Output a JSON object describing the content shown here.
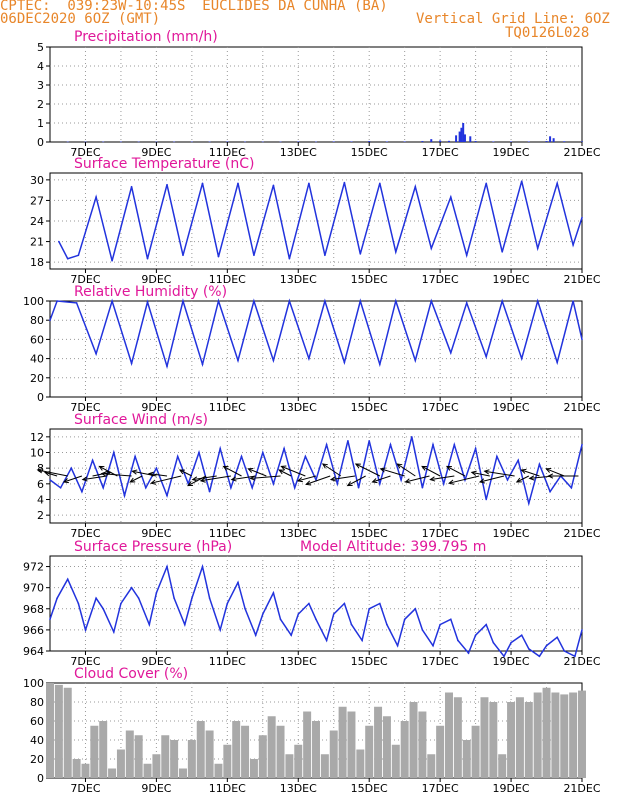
{
  "header": {
    "line1_left": "CPTEC:  039:23W-10:45S  EUCLIDES DA CUNHA (BA)",
    "line2_left": "06DEC2020 6OZ (GMT)",
    "line2_right": "Vertical Grid Line: 6OZ",
    "line3_right": "TQ0126L028"
  },
  "colors": {
    "series": "#2233dd",
    "bars_cloud": "#a9a9a9",
    "title": "#e0189a",
    "header": "#e8862a",
    "wind_arrow": "#000000"
  },
  "x_axis": {
    "start_day": 6,
    "end_day": 21,
    "tick_labels": [
      "7DEC",
      "9DEC",
      "11DEC",
      "13DEC",
      "15DEC",
      "17DEC",
      "19DEC",
      "21DEC"
    ],
    "tick_days": [
      7,
      9,
      11,
      13,
      15,
      17,
      19,
      21
    ],
    "vertical_gridlines": "every day at 06Z"
  },
  "chart_data": [
    {
      "id": "precip",
      "type": "bar",
      "title": "Precipitation (mm/h)",
      "ylim": [
        0,
        5
      ],
      "yticks": [
        0,
        1,
        2,
        3,
        4,
        5
      ],
      "grid": true,
      "series": [
        {
          "name": "",
          "x": [
            6.5,
            7.0,
            7.5,
            8.0,
            8.5,
            9.0,
            9.5,
            10.0,
            10.5,
            11.0,
            11.5,
            12.0,
            12.5,
            13.0,
            13.5,
            14.0,
            14.5,
            15.0,
            15.5,
            16.0,
            16.5,
            16.75,
            17.0,
            17.25,
            17.45,
            17.55,
            17.6,
            17.65,
            17.7,
            17.85,
            18.0,
            18.5,
            19.0,
            19.5,
            20.0,
            20.1,
            20.2,
            20.5,
            21.0
          ],
          "values": [
            0.02,
            0.02,
            0.02,
            0.02,
            0.02,
            0.02,
            0.02,
            0.02,
            0.02,
            0.03,
            0.02,
            0.02,
            0.02,
            0.03,
            0.02,
            0.03,
            0.03,
            0.05,
            0.03,
            0.03,
            0.05,
            0.15,
            0.08,
            0.06,
            0.35,
            0.55,
            0.75,
            1.0,
            0.4,
            0.3,
            0.05,
            0.03,
            0.03,
            0.03,
            0.05,
            0.3,
            0.2,
            0.04,
            0.03
          ]
        }
      ]
    },
    {
      "id": "temp",
      "type": "line",
      "title": "Surface Temperature (nC)",
      "ylim": [
        17,
        31
      ],
      "yticks": [
        18,
        21,
        24,
        27,
        30
      ],
      "grid": true,
      "series": [
        {
          "name": "",
          "x": [
            6.25,
            6.5,
            6.8,
            7.3,
            7.75,
            8.3,
            8.75,
            9.3,
            9.75,
            10.3,
            10.75,
            11.3,
            11.75,
            12.3,
            12.75,
            13.3,
            13.75,
            14.3,
            14.75,
            15.3,
            15.75,
            16.3,
            16.75,
            17.3,
            17.75,
            18.3,
            18.75,
            19.3,
            19.75,
            20.3,
            20.75,
            21.0
          ],
          "values": [
            21,
            18.5,
            19,
            27.5,
            18.2,
            29,
            18.5,
            29.3,
            19,
            29.5,
            18.8,
            29.5,
            19,
            29.2,
            18.5,
            29.5,
            19,
            29.6,
            19.2,
            29.5,
            19.5,
            29,
            20,
            27.5,
            19,
            29.5,
            19.5,
            29.8,
            20,
            29.5,
            20.5,
            24.5
          ]
        }
      ]
    },
    {
      "id": "rh",
      "type": "line",
      "title": "Relative Humidity (%)",
      "ylim": [
        0,
        100
      ],
      "yticks": [
        0,
        20,
        40,
        60,
        80,
        100
      ],
      "grid": true,
      "series": [
        {
          "name": "",
          "x": [
            6.0,
            6.2,
            6.75,
            7.3,
            7.75,
            8.3,
            8.75,
            9.3,
            9.75,
            10.3,
            10.75,
            11.3,
            11.75,
            12.3,
            12.75,
            13.3,
            13.75,
            14.3,
            14.75,
            15.3,
            15.75,
            16.3,
            16.75,
            17.3,
            17.75,
            18.3,
            18.75,
            19.3,
            19.75,
            20.3,
            20.75,
            21.0
          ],
          "values": [
            80,
            100,
            98,
            45,
            100,
            35,
            99,
            32,
            100,
            34,
            100,
            38,
            100,
            38,
            100,
            40,
            100,
            36,
            100,
            34,
            100,
            38,
            100,
            46,
            98,
            42,
            100,
            40,
            100,
            36,
            100,
            60
          ]
        }
      ]
    },
    {
      "id": "wind",
      "type": "line",
      "title": "Surface Wind (m/s)",
      "ylim": [
        1,
        13
      ],
      "yticks": [
        2,
        4,
        6,
        8,
        10,
        12
      ],
      "grid": true,
      "series": [
        {
          "name": "",
          "x": [
            6.0,
            6.3,
            6.6,
            6.9,
            7.2,
            7.5,
            7.8,
            8.1,
            8.4,
            8.7,
            9.0,
            9.3,
            9.6,
            9.9,
            10.2,
            10.5,
            10.8,
            11.1,
            11.4,
            11.7,
            12.0,
            12.3,
            12.6,
            12.9,
            13.2,
            13.5,
            13.8,
            14.1,
            14.4,
            14.7,
            15.0,
            15.3,
            15.6,
            15.9,
            16.2,
            16.5,
            16.8,
            17.1,
            17.4,
            17.7,
            18.0,
            18.3,
            18.6,
            18.9,
            19.2,
            19.5,
            19.8,
            20.1,
            20.4,
            20.7,
            21.0
          ],
          "values": [
            6.5,
            5.5,
            8,
            5,
            9,
            5.5,
            10,
            4.5,
            9.5,
            5.5,
            8,
            4.5,
            9.5,
            6,
            10,
            5,
            10.5,
            5.5,
            9.5,
            5.5,
            10,
            6,
            10.5,
            5.5,
            9.5,
            6.5,
            11,
            6,
            11.5,
            5.5,
            11.5,
            6,
            11,
            6.5,
            12,
            5.5,
            11,
            6,
            11,
            6.5,
            10.5,
            4,
            9.5,
            6.5,
            9,
            3.5,
            8.5,
            5,
            7,
            5.5,
            11
          ]
        }
      ],
      "wind_vectors": {
        "x": [
          6.2,
          6.5,
          6.9,
          7.2,
          7.6,
          7.9,
          8.3,
          8.6,
          9.0,
          9.3,
          9.7,
          10.0,
          10.4,
          10.7,
          11.1,
          11.4,
          11.8,
          12.1,
          12.5,
          12.8,
          13.2,
          13.5,
          13.9,
          14.2,
          14.6,
          14.9,
          15.3,
          15.6,
          16.0,
          16.3,
          16.7,
          17.0,
          17.4,
          17.7,
          18.1,
          18.4,
          18.8,
          19.1,
          19.5,
          19.8,
          20.2,
          20.5,
          20.9
        ],
        "u": [
          -1,
          -2.5,
          -1.5,
          1.5,
          -2,
          -1.5,
          -2.5,
          -1,
          -2,
          -1.5,
          -2.5,
          -1,
          -1.5,
          -2,
          -2.5,
          -1.5,
          -2,
          -1.5,
          -2.5,
          -1,
          -2,
          -1.5,
          -2,
          -1.5,
          -2,
          -1.5,
          -2,
          -1.5,
          -2,
          -1.5,
          -2,
          -1.5,
          -2,
          -1.5,
          -2.5,
          -1.5,
          -2,
          -2.5,
          -1,
          -1.5,
          -2,
          -1.5,
          -2.5
        ],
        "v": [
          0.3,
          0.5,
          -0.5,
          0.3,
          -0.3,
          0.8,
          0.2,
          -0.5,
          0.4,
          0.2,
          -0.6,
          0.5,
          -0.8,
          -0.3,
          -0.4,
          0.8,
          -0.3,
          0.6,
          -0.2,
          0.5,
          0.8,
          -0.4,
          -0.7,
          1,
          -0.3,
          -0.8,
          1,
          -0.5,
          0.6,
          1,
          -0.5,
          0.8,
          -0.3,
          0.8,
          -0.6,
          0.3,
          -0.5,
          0.4,
          -0.5,
          0.5,
          -0.2,
          0.6,
          0
        ]
      }
    },
    {
      "id": "pressure",
      "type": "line",
      "title": "Surface Pressure (hPa)",
      "subtitle": "Model Altitude: 399.795 m",
      "ylim": [
        964,
        973
      ],
      "yticks": [
        964,
        966,
        968,
        970,
        972
      ],
      "grid": true,
      "series": [
        {
          "name": "",
          "x": [
            6.0,
            6.2,
            6.5,
            6.8,
            7.0,
            7.3,
            7.5,
            7.8,
            8.0,
            8.3,
            8.5,
            8.8,
            9.0,
            9.3,
            9.5,
            9.8,
            10.0,
            10.3,
            10.5,
            10.8,
            11.0,
            11.3,
            11.5,
            11.8,
            12.0,
            12.3,
            12.5,
            12.8,
            13.0,
            13.3,
            13.5,
            13.8,
            14.0,
            14.3,
            14.5,
            14.8,
            15.0,
            15.3,
            15.5,
            15.8,
            16.0,
            16.3,
            16.5,
            16.8,
            17.0,
            17.3,
            17.5,
            17.8,
            18.0,
            18.3,
            18.5,
            18.8,
            19.0,
            19.3,
            19.5,
            19.8,
            20.0,
            20.3,
            20.5,
            20.8,
            21.0
          ],
          "values": [
            967,
            969,
            970.8,
            968.5,
            966,
            969,
            968,
            965.8,
            968.5,
            970,
            969,
            966.5,
            969.5,
            972,
            969,
            966.5,
            969,
            972,
            969,
            966,
            968.5,
            970.5,
            968,
            965.5,
            967.5,
            969.5,
            967,
            965.5,
            967.5,
            968.5,
            967,
            965,
            967.5,
            968.5,
            966.5,
            965,
            968,
            968.5,
            966.5,
            964.5,
            967,
            968,
            966,
            964.5,
            966.5,
            967,
            965,
            963.8,
            965.5,
            966.5,
            964.8,
            963.5,
            964.8,
            965.5,
            964.2,
            963.5,
            964.5,
            965.3,
            964,
            963.5,
            966
          ]
        }
      ]
    },
    {
      "id": "cloud",
      "type": "bar",
      "title": "Cloud Cover (%)",
      "ylim": [
        0,
        100
      ],
      "yticks": [
        0,
        20,
        40,
        60,
        80,
        100
      ],
      "grid": true,
      "series": [
        {
          "name": "",
          "x": [
            6.0,
            6.25,
            6.5,
            6.75,
            7.0,
            7.25,
            7.5,
            7.75,
            8.0,
            8.25,
            8.5,
            8.75,
            9.0,
            9.25,
            9.5,
            9.75,
            10.0,
            10.25,
            10.5,
            10.75,
            11.0,
            11.25,
            11.5,
            11.75,
            12.0,
            12.25,
            12.5,
            12.75,
            13.0,
            13.25,
            13.5,
            13.75,
            14.0,
            14.25,
            14.5,
            14.75,
            15.0,
            15.25,
            15.5,
            15.75,
            16.0,
            16.25,
            16.5,
            16.75,
            17.0,
            17.25,
            17.5,
            17.75,
            18.0,
            18.25,
            18.5,
            18.75,
            19.0,
            19.25,
            19.5,
            19.75,
            20.0,
            20.25,
            20.5,
            20.75,
            21.0
          ],
          "values": [
            100,
            98,
            95,
            20,
            15,
            55,
            60,
            10,
            30,
            50,
            45,
            15,
            25,
            45,
            40,
            10,
            40,
            60,
            50,
            15,
            35,
            60,
            55,
            20,
            45,
            65,
            55,
            25,
            35,
            70,
            60,
            25,
            50,
            75,
            70,
            30,
            55,
            75,
            65,
            35,
            60,
            80,
            70,
            25,
            55,
            90,
            85,
            40,
            55,
            85,
            80,
            25,
            80,
            85,
            80,
            90,
            95,
            90,
            88,
            90,
            92
          ]
        }
      ]
    }
  ]
}
